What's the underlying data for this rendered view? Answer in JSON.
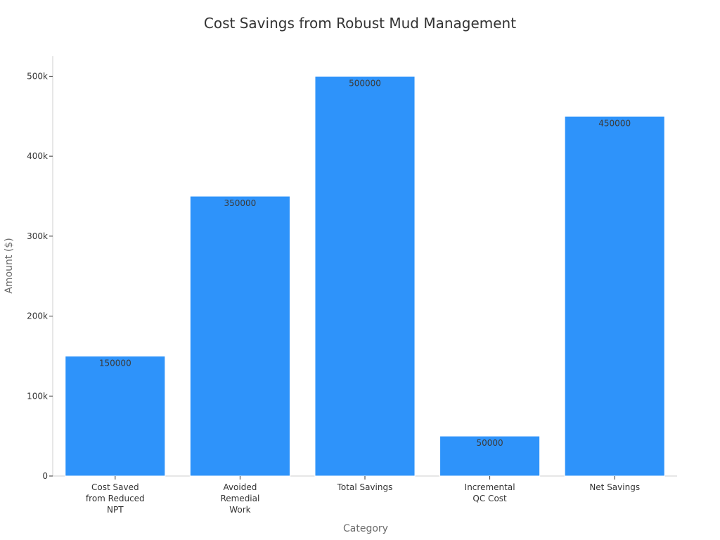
{
  "chart_data": {
    "type": "bar",
    "title": "Cost Savings from Robust Mud Management",
    "xlabel": "Category",
    "ylabel": "Amount ($)",
    "categories": [
      "Cost Saved from Reduced NPT",
      "Avoided Remedial Work",
      "Total Savings",
      "Incremental QC Cost",
      "Net Savings"
    ],
    "category_lines": [
      [
        "Cost Saved",
        "from Reduced",
        "NPT"
      ],
      [
        "Avoided",
        "Remedial",
        "Work"
      ],
      [
        "Total Savings"
      ],
      [
        "Incremental",
        "QC Cost"
      ],
      [
        "Net Savings"
      ]
    ],
    "values": [
      150000,
      350000,
      500000,
      50000,
      450000
    ],
    "data_labels": [
      "150000",
      "350000",
      "500000",
      "50000",
      "450000"
    ],
    "ylim": [
      0,
      525000
    ],
    "yticks": [
      0,
      100000,
      200000,
      300000,
      400000,
      500000
    ],
    "ytick_labels": [
      "0",
      "100k",
      "200k",
      "300k",
      "400k",
      "500k"
    ],
    "bar_color": "#2e93fa",
    "grid": false,
    "legend": "none"
  }
}
